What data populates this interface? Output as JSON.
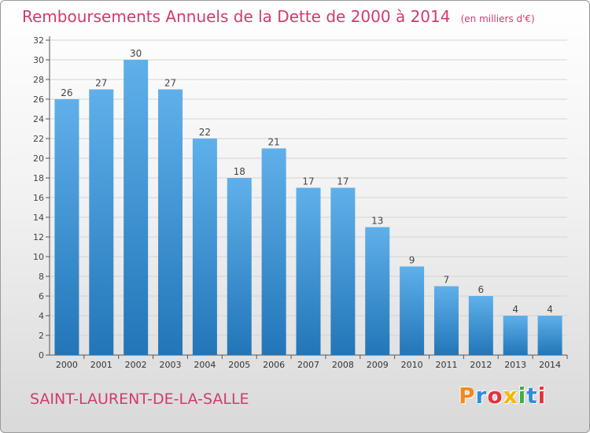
{
  "header": {
    "title": "Remboursements Annuels de la Dette de 2000 à 2014",
    "unit": "(en milliers d'€)"
  },
  "footer": {
    "commune": "SAINT-LAURENT-DE-LA-SALLE",
    "brand": "Proxiti",
    "brand_colors": [
      "#f08a1e",
      "#2f8fd5",
      "#e2343e",
      "#f5b800",
      "#3fae3f",
      "#2f8fd5",
      "#e2343e"
    ]
  },
  "colors": {
    "accent": "#d23a6e",
    "bar_light": "#5fb0ea",
    "bar_dark": "#2276b8"
  },
  "chart_data": {
    "type": "bar",
    "title": "Remboursements Annuels de la Dette de 2000 à 2014",
    "subtitle": "(en milliers d'€)",
    "categories": [
      "2000",
      "2001",
      "2002",
      "2003",
      "2004",
      "2005",
      "2006",
      "2007",
      "2008",
      "2009",
      "2010",
      "2011",
      "2012",
      "2013",
      "2014"
    ],
    "values": [
      26,
      27,
      30,
      27,
      22,
      18,
      21,
      17,
      17,
      13,
      9,
      7,
      6,
      4,
      4
    ],
    "ylim": [
      0,
      32
    ],
    "yticks": [
      0,
      2,
      4,
      6,
      8,
      10,
      12,
      14,
      16,
      18,
      20,
      22,
      24,
      26,
      28,
      30,
      32
    ],
    "grid": true,
    "data_labels": true
  }
}
